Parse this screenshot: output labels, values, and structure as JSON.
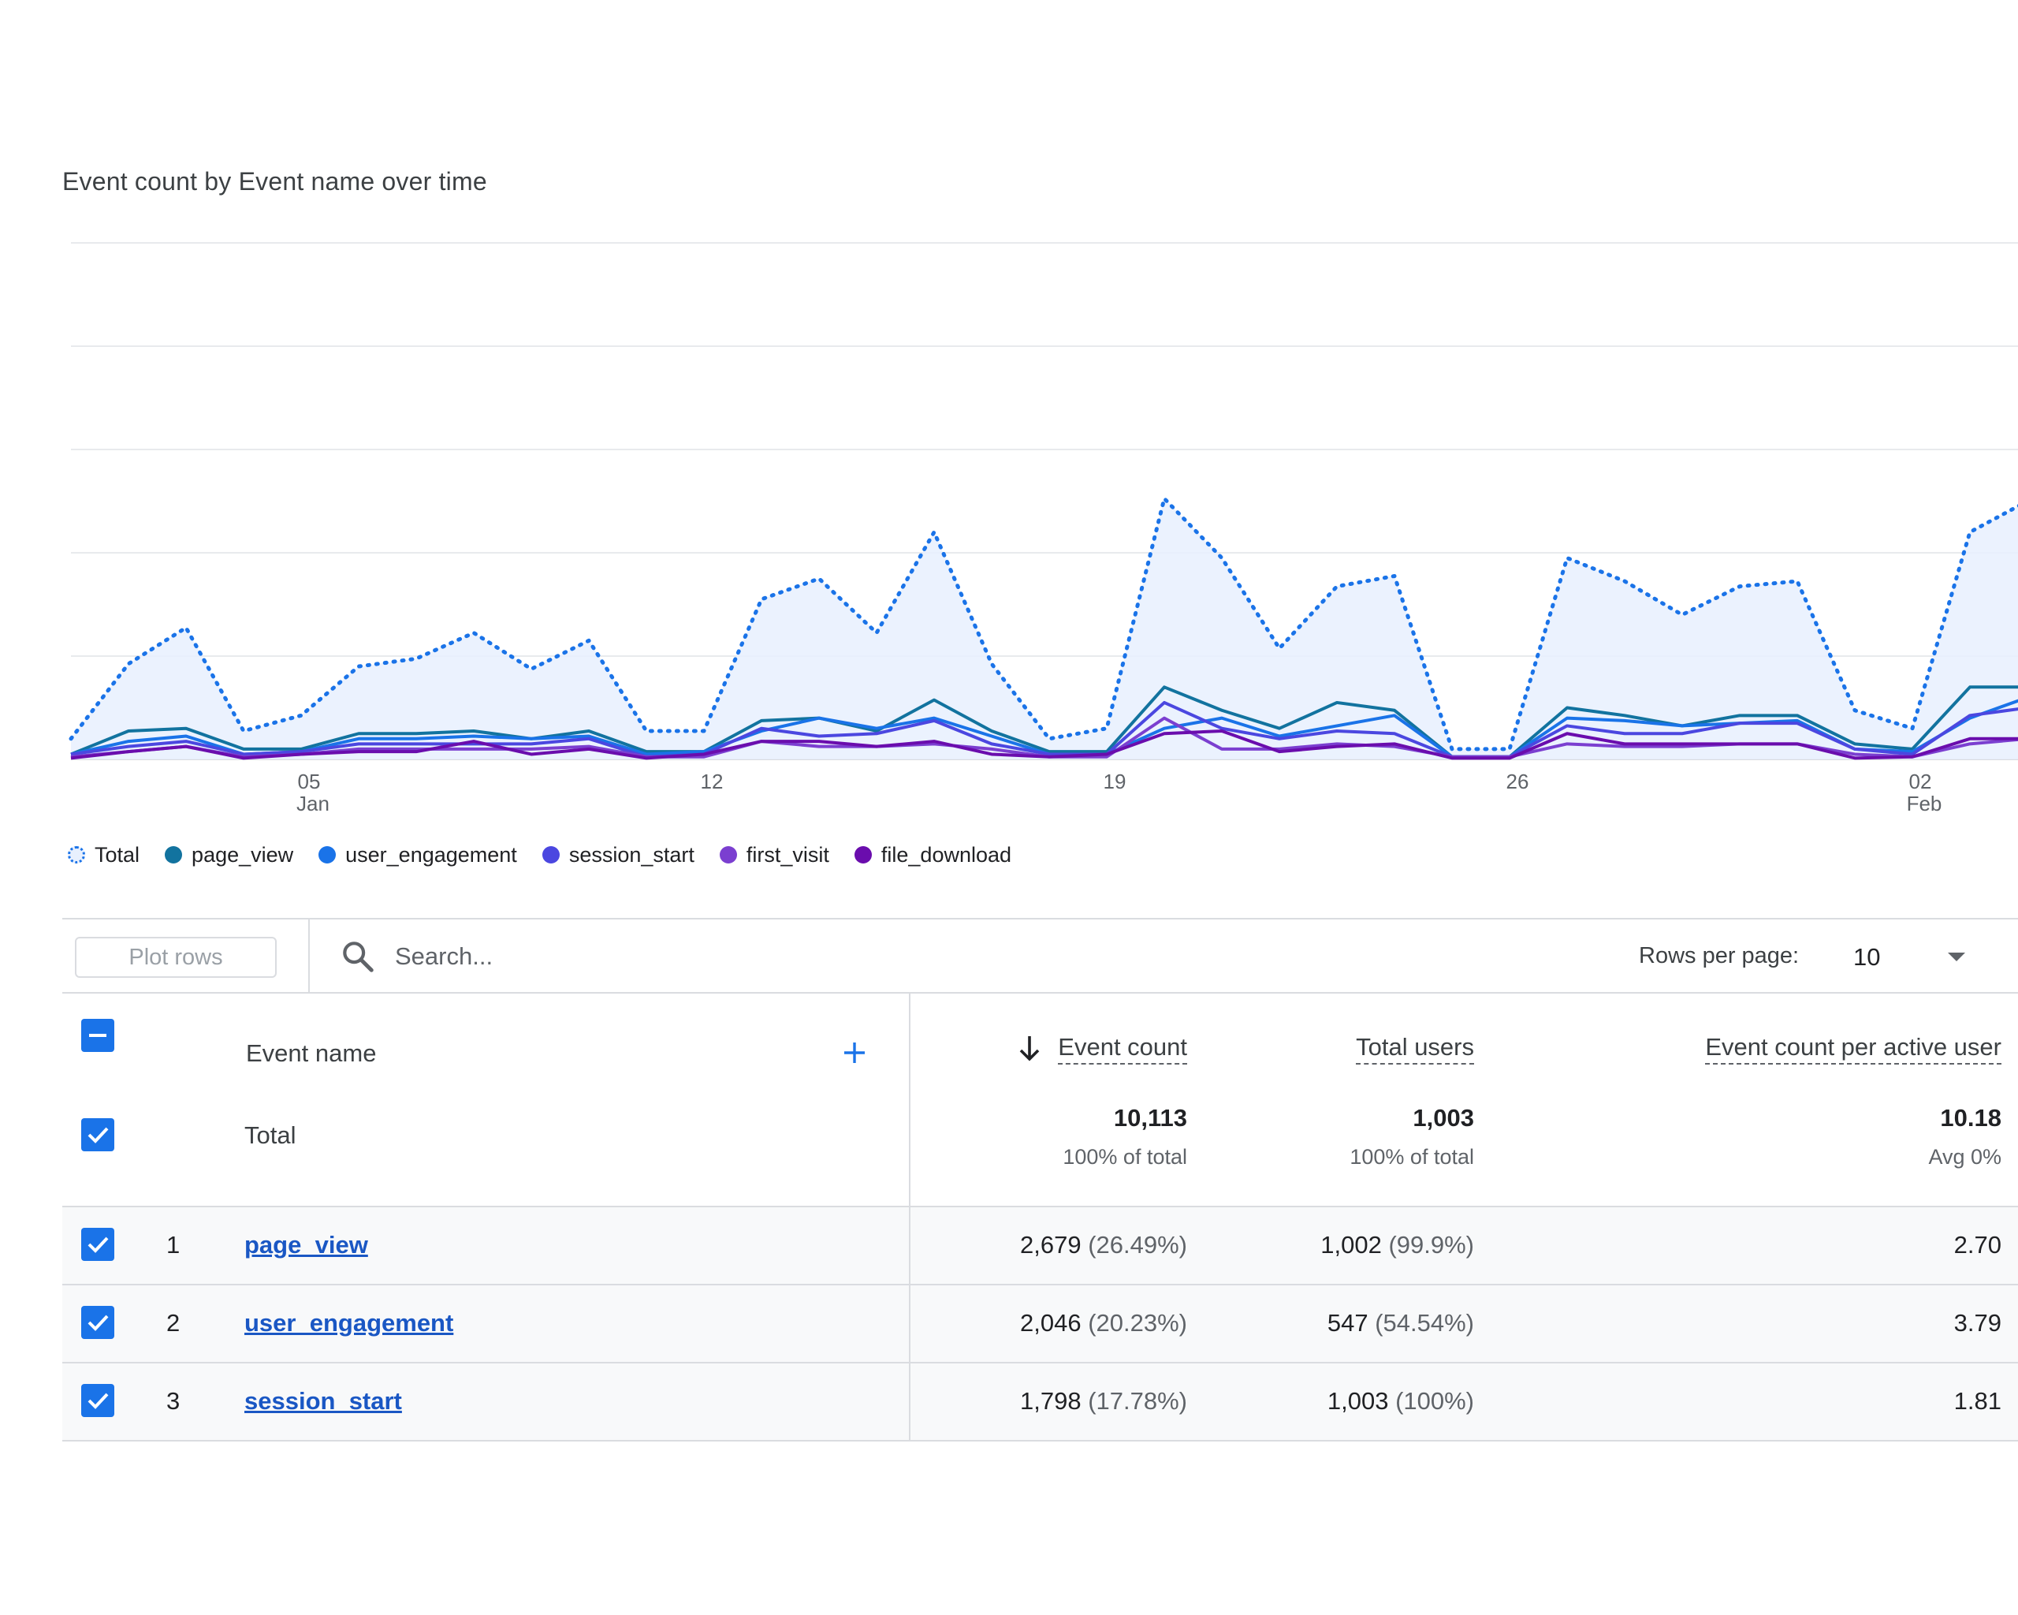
{
  "card": {
    "title": "Event count by Event name over time"
  },
  "chart_data": {
    "type": "line",
    "x": [
      "Jan 01",
      "Jan 02",
      "Jan 03",
      "Jan 04",
      "Jan 05",
      "Jan 06",
      "Jan 07",
      "Jan 08",
      "Jan 09",
      "Jan 10",
      "Jan 11",
      "Jan 12",
      "Jan 13",
      "Jan 14",
      "Jan 15",
      "Jan 16",
      "Jan 17",
      "Jan 18",
      "Jan 19",
      "Jan 20",
      "Jan 21",
      "Jan 22",
      "Jan 23",
      "Jan 24",
      "Jan 25",
      "Jan 26",
      "Jan 27",
      "Jan 28",
      "Jan 29",
      "Jan 30",
      "Jan 31",
      "Feb 01",
      "Feb 02",
      "Feb 03",
      "Feb 04"
    ],
    "x_ticks": [
      {
        "day": "05",
        "month": "Jan",
        "index": 4
      },
      {
        "day": "12",
        "month": "",
        "index": 11
      },
      {
        "day": "19",
        "month": "",
        "index": 18
      },
      {
        "day": "26",
        "month": "",
        "index": 25
      },
      {
        "day": "02",
        "month": "Feb",
        "index": 32
      }
    ],
    "ylim": [
      0,
      2000
    ],
    "y_gridlines": [
      0,
      400,
      800,
      1200,
      1600
    ],
    "y_axis_labels_visible": false,
    "series": [
      {
        "name": "Total",
        "color": "#1a73e8",
        "style": "dotted-area",
        "values": [
          80,
          370,
          510,
          110,
          170,
          360,
          390,
          490,
          350,
          460,
          110,
          110,
          620,
          700,
          490,
          880,
          370,
          80,
          120,
          1010,
          780,
          430,
          670,
          710,
          40,
          40,
          780,
          690,
          560,
          670,
          690,
          190,
          120,
          880,
          1000
        ]
      },
      {
        "name": "page_view",
        "color": "#12739f",
        "style": "line",
        "values": [
          20,
          110,
          120,
          40,
          40,
          100,
          100,
          110,
          80,
          110,
          30,
          30,
          150,
          160,
          110,
          230,
          110,
          30,
          30,
          280,
          190,
          120,
          220,
          190,
          10,
          10,
          200,
          170,
          130,
          170,
          170,
          60,
          40,
          280,
          280
        ]
      },
      {
        "name": "user_engagement",
        "color": "#1a73e8",
        "style": "line",
        "values": [
          20,
          70,
          90,
          20,
          30,
          80,
          80,
          90,
          80,
          90,
          20,
          30,
          110,
          160,
          120,
          160,
          90,
          20,
          20,
          120,
          160,
          90,
          130,
          170,
          10,
          10,
          160,
          150,
          130,
          140,
          150,
          40,
          30,
          160,
          240
        ]
      },
      {
        "name": "session_start",
        "color": "#4b47e0",
        "style": "line",
        "values": [
          20,
          50,
          70,
          20,
          30,
          60,
          60,
          60,
          60,
          80,
          10,
          20,
          120,
          90,
          100,
          150,
          60,
          20,
          20,
          220,
          120,
          80,
          110,
          100,
          10,
          10,
          130,
          100,
          100,
          140,
          140,
          40,
          20,
          170,
          200
        ]
      },
      {
        "name": "first_visit",
        "color": "#7b3fd0",
        "style": "line",
        "values": [
          10,
          30,
          50,
          10,
          20,
          40,
          40,
          40,
          40,
          50,
          10,
          10,
          70,
          50,
          50,
          60,
          40,
          10,
          10,
          160,
          40,
          40,
          60,
          50,
          10,
          10,
          60,
          50,
          50,
          60,
          60,
          20,
          10,
          60,
          80
        ]
      },
      {
        "name": "file_download",
        "color": "#6a0dad",
        "style": "line",
        "values": [
          5,
          30,
          50,
          5,
          20,
          30,
          30,
          70,
          20,
          40,
          5,
          20,
          70,
          70,
          50,
          70,
          20,
          10,
          20,
          100,
          110,
          30,
          50,
          60,
          5,
          5,
          100,
          60,
          60,
          60,
          60,
          5,
          10,
          80,
          80
        ]
      }
    ]
  },
  "legend": [
    {
      "label": "Total",
      "color": "#1a73e8",
      "dashed": true
    },
    {
      "label": "page_view",
      "color": "#12739f",
      "dashed": false
    },
    {
      "label": "user_engagement",
      "color": "#1a73e8",
      "dashed": false
    },
    {
      "label": "session_start",
      "color": "#4b47e0",
      "dashed": false
    },
    {
      "label": "first_visit",
      "color": "#7b3fd0",
      "dashed": false
    },
    {
      "label": "file_download",
      "color": "#6a0dad",
      "dashed": false
    }
  ],
  "toolbar": {
    "plot_rows_label": "Plot rows",
    "search_placeholder": "Search...",
    "search_icon": "search-icon",
    "rows_per_page_label": "Rows per page:",
    "rows_per_page_value": "10"
  },
  "table": {
    "columns": {
      "event_name": "Event name",
      "event_count": "Event count",
      "total_users": "Total users",
      "per_user": "Event count per active user"
    },
    "sort_icon": "arrow-down-icon",
    "add_icon": "plus-icon",
    "total": {
      "label": "Total",
      "event_count": "10,113",
      "event_count_sub": "100% of total",
      "total_users": "1,003",
      "total_users_sub": "100% of total",
      "per_user": "10.18",
      "per_user_sub": "Avg 0%"
    },
    "rows": [
      {
        "index": "1",
        "name": "page_view",
        "event_count": "2,679",
        "event_count_pct": "(26.49%)",
        "total_users": "1,002",
        "total_users_pct": "(99.9%)",
        "per_user": "2.70"
      },
      {
        "index": "2",
        "name": "user_engagement",
        "event_count": "2,046",
        "event_count_pct": "(20.23%)",
        "total_users": "547",
        "total_users_pct": "(54.54%)",
        "per_user": "3.79"
      },
      {
        "index": "3",
        "name": "session_start",
        "event_count": "1,798",
        "event_count_pct": "(17.78%)",
        "total_users": "1,003",
        "total_users_pct": "(100%)",
        "per_user": "1.81"
      }
    ]
  }
}
